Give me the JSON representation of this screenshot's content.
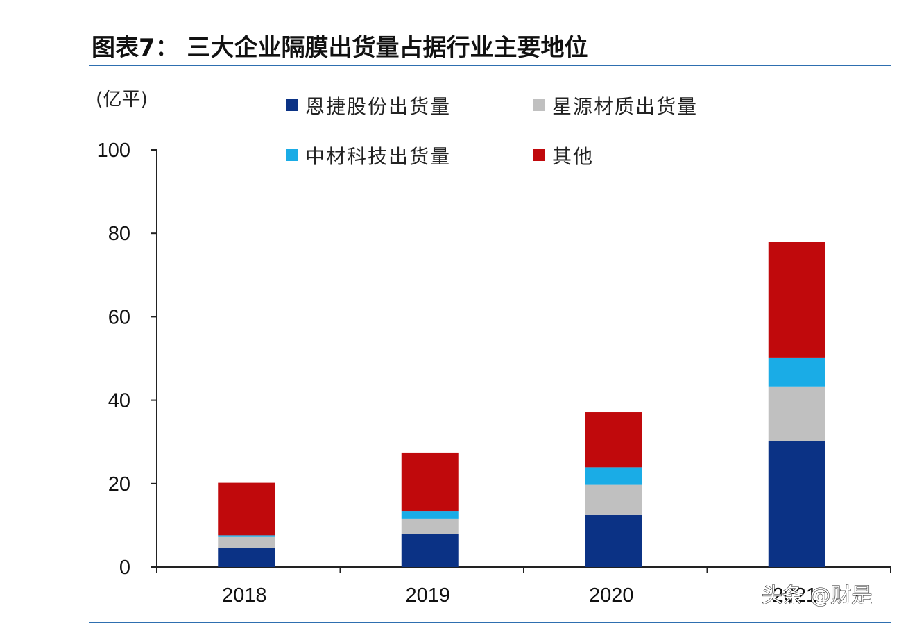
{
  "title": "图表7：  三大企业隔膜出货量占据行业主要地位",
  "watermark": "头条 @财是",
  "chart_data": {
    "type": "bar",
    "stacked": true,
    "unit_label": "(亿平)",
    "categories": [
      "2018",
      "2019",
      "2020",
      "2021"
    ],
    "ylim": [
      0,
      100
    ],
    "yticks": [
      0,
      20,
      40,
      60,
      80,
      100
    ],
    "grid": false,
    "legend_position": "top",
    "series": [
      {
        "name": "恩捷股份出货量",
        "color": "#0b3285",
        "values": [
          4.5,
          7.9,
          12.5,
          30.2
        ]
      },
      {
        "name": "星源材质出货量",
        "color": "#c0c0c0",
        "values": [
          2.7,
          3.6,
          7.2,
          13.1
        ]
      },
      {
        "name": "中材科技出货量",
        "color": "#1aace6",
        "values": [
          0.4,
          1.8,
          4.2,
          6.8
        ]
      },
      {
        "name": "其他",
        "color": "#c0090c",
        "values": [
          12.6,
          14.0,
          13.2,
          27.8
        ]
      }
    ]
  }
}
